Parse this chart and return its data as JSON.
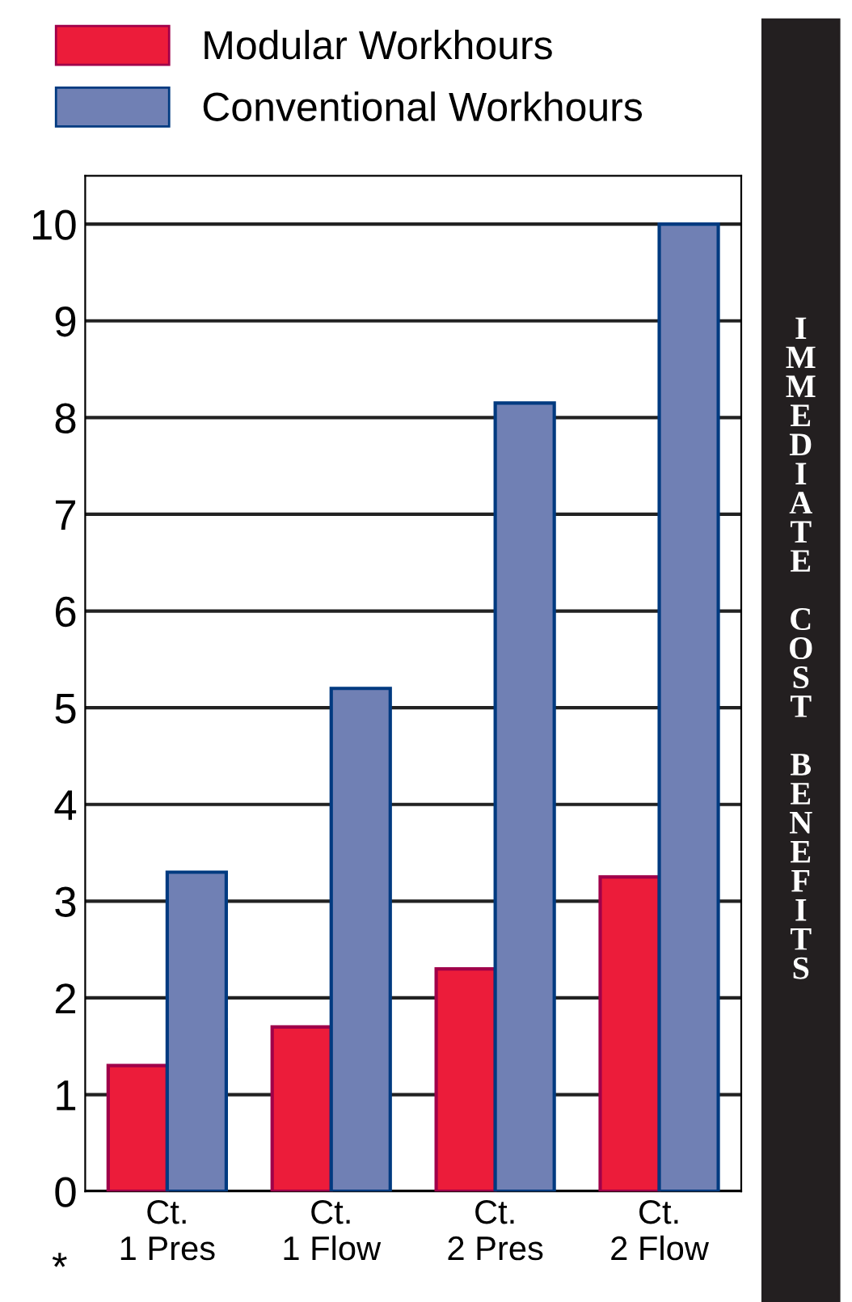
{
  "chart_data": {
    "type": "bar",
    "categories": [
      "Ct.\n1 Pres",
      "Ct.\n1 Flow",
      "Ct.\n2 Pres",
      "Ct.\n2 Flow"
    ],
    "series": [
      {
        "name": "Modular Workhours",
        "color": "#ec1c3a",
        "values": [
          1.3,
          1.7,
          2.3,
          3.25
        ]
      },
      {
        "name": "Conventional Workhours",
        "color": "#7080b4",
        "values": [
          3.3,
          5.2,
          8.15,
          10
        ]
      }
    ],
    "ylim": [
      0,
      10.5
    ],
    "yticks": [
      0,
      1,
      2,
      3,
      4,
      5,
      6,
      7,
      8,
      9,
      10
    ],
    "grid": "y",
    "legend": "top",
    "annotations": [
      "I\nM\nM\nE\nD\nI\nA\nT\nE\n\nC\nO\nS\nT\n\nB\nE\nN\nE\nF\nI\nT\nS",
      "*"
    ]
  }
}
